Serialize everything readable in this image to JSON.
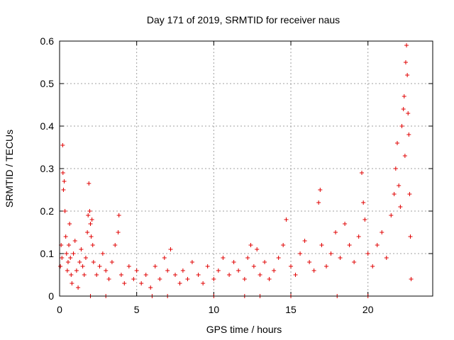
{
  "chart_data": {
    "type": "scatter",
    "title": "Day 171 of 2019, SRMTID for receiver naus",
    "xlabel": "GPS time / hours",
    "ylabel": "SRMTID / TECUs",
    "xlim": [
      0,
      24.2
    ],
    "ylim": [
      0,
      0.6
    ],
    "x_ticks": [
      0,
      5,
      10,
      15,
      20
    ],
    "y_ticks": [
      0,
      0.1,
      0.2,
      0.3,
      0.4,
      0.5,
      0.6
    ],
    "x_tick_labels": [
      "0",
      "5",
      "10",
      "15",
      "20"
    ],
    "y_tick_labels": [
      "0",
      "0.1",
      "0.2",
      "0.3",
      "0.4",
      "0.5",
      "0.6"
    ],
    "grid": true,
    "marker": "+",
    "color": "#e00000",
    "series": [
      {
        "name": "SRMTID",
        "points": [
          [
            0.05,
            0.07
          ],
          [
            0.1,
            0.12
          ],
          [
            0.15,
            0.09
          ],
          [
            0.2,
            0.355
          ],
          [
            0.22,
            0.29
          ],
          [
            0.25,
            0.25
          ],
          [
            0.3,
            0.27
          ],
          [
            0.35,
            0.2
          ],
          [
            0.4,
            0.14
          ],
          [
            0.45,
            0.1
          ],
          [
            0.5,
            0.06
          ],
          [
            0.55,
            0.08
          ],
          [
            0.6,
            0.12
          ],
          [
            0.65,
            0.17
          ],
          [
            0.7,
            0.09
          ],
          [
            0.75,
            0.05
          ],
          [
            0.8,
            0.03
          ],
          [
            0.9,
            0.1
          ],
          [
            1.0,
            0.13
          ],
          [
            1.1,
            0.06
          ],
          [
            1.2,
            0.02
          ],
          [
            1.3,
            0.08
          ],
          [
            1.4,
            0.11
          ],
          [
            1.5,
            0.07
          ],
          [
            1.6,
            0.05
          ],
          [
            1.7,
            0.09
          ],
          [
            1.8,
            0.15
          ],
          [
            1.85,
            0.19
          ],
          [
            1.9,
            0.265
          ],
          [
            1.95,
            0.2
          ],
          [
            2.0,
            0.17
          ],
          [
            2.05,
            0.14
          ],
          [
            2.1,
            0.18
          ],
          [
            2.15,
            0.12
          ],
          [
            2.2,
            0.08
          ],
          [
            2.4,
            0.05
          ],
          [
            2.6,
            0.07
          ],
          [
            2.8,
            0.1
          ],
          [
            3.0,
            0.06
          ],
          [
            3.2,
            0.04
          ],
          [
            3.4,
            0.08
          ],
          [
            3.6,
            0.12
          ],
          [
            3.8,
            0.15
          ],
          [
            3.85,
            0.19
          ],
          [
            4.0,
            0.05
          ],
          [
            4.2,
            0.03
          ],
          [
            4.5,
            0.07
          ],
          [
            4.8,
            0.04
          ],
          [
            5.0,
            0.06
          ],
          [
            5.3,
            0.03
          ],
          [
            5.6,
            0.05
          ],
          [
            5.9,
            0.02
          ],
          [
            6.2,
            0.07
          ],
          [
            6.5,
            0.04
          ],
          [
            6.8,
            0.09
          ],
          [
            7.0,
            0.06
          ],
          [
            7.2,
            0.11
          ],
          [
            7.5,
            0.05
          ],
          [
            7.8,
            0.03
          ],
          [
            8.0,
            0.06
          ],
          [
            8.3,
            0.04
          ],
          [
            8.6,
            0.08
          ],
          [
            9.0,
            0.05
          ],
          [
            9.3,
            0.03
          ],
          [
            9.6,
            0.07
          ],
          [
            10.0,
            0.04
          ],
          [
            10.3,
            0.06
          ],
          [
            10.6,
            0.09
          ],
          [
            11.0,
            0.05
          ],
          [
            11.3,
            0.08
          ],
          [
            11.6,
            0.06
          ],
          [
            12.0,
            0.04
          ],
          [
            12.2,
            0.09
          ],
          [
            12.4,
            0.12
          ],
          [
            12.6,
            0.07
          ],
          [
            12.8,
            0.11
          ],
          [
            13.0,
            0.05
          ],
          [
            13.3,
            0.08
          ],
          [
            13.6,
            0.04
          ],
          [
            13.9,
            0.06
          ],
          [
            14.2,
            0.09
          ],
          [
            14.5,
            0.12
          ],
          [
            14.7,
            0.18
          ],
          [
            15.0,
            0.07
          ],
          [
            15.3,
            0.05
          ],
          [
            15.6,
            0.1
          ],
          [
            15.9,
            0.13
          ],
          [
            16.2,
            0.08
          ],
          [
            16.5,
            0.06
          ],
          [
            16.8,
            0.22
          ],
          [
            16.9,
            0.25
          ],
          [
            17.0,
            0.12
          ],
          [
            17.3,
            0.07
          ],
          [
            17.6,
            0.1
          ],
          [
            17.9,
            0.15
          ],
          [
            18.2,
            0.09
          ],
          [
            18.5,
            0.17
          ],
          [
            18.8,
            0.12
          ],
          [
            19.1,
            0.08
          ],
          [
            19.4,
            0.14
          ],
          [
            19.6,
            0.29
          ],
          [
            19.7,
            0.22
          ],
          [
            19.8,
            0.18
          ],
          [
            20.0,
            0.1
          ],
          [
            20.3,
            0.07
          ],
          [
            20.6,
            0.12
          ],
          [
            20.9,
            0.15
          ],
          [
            21.2,
            0.09
          ],
          [
            21.5,
            0.19
          ],
          [
            21.7,
            0.24
          ],
          [
            21.8,
            0.3
          ],
          [
            21.9,
            0.36
          ],
          [
            22.0,
            0.26
          ],
          [
            22.1,
            0.21
          ],
          [
            22.2,
            0.4
          ],
          [
            22.3,
            0.44
          ],
          [
            22.35,
            0.47
          ],
          [
            22.4,
            0.33
          ],
          [
            22.45,
            0.55
          ],
          [
            22.5,
            0.59
          ],
          [
            22.55,
            0.52
          ],
          [
            22.6,
            0.43
          ],
          [
            22.65,
            0.38
          ],
          [
            22.7,
            0.24
          ],
          [
            22.75,
            0.14
          ],
          [
            22.8,
            0.04
          ],
          [
            2.0,
            0.0
          ],
          [
            3.0,
            0.0
          ],
          [
            6.0,
            0.0
          ],
          [
            7.0,
            0.0
          ],
          [
            10.0,
            0.0
          ],
          [
            12.0,
            0.0
          ],
          [
            13.0,
            0.0
          ],
          [
            15.0,
            0.0
          ],
          [
            18.0,
            0.0
          ],
          [
            20.0,
            0.0
          ]
        ]
      }
    ]
  }
}
